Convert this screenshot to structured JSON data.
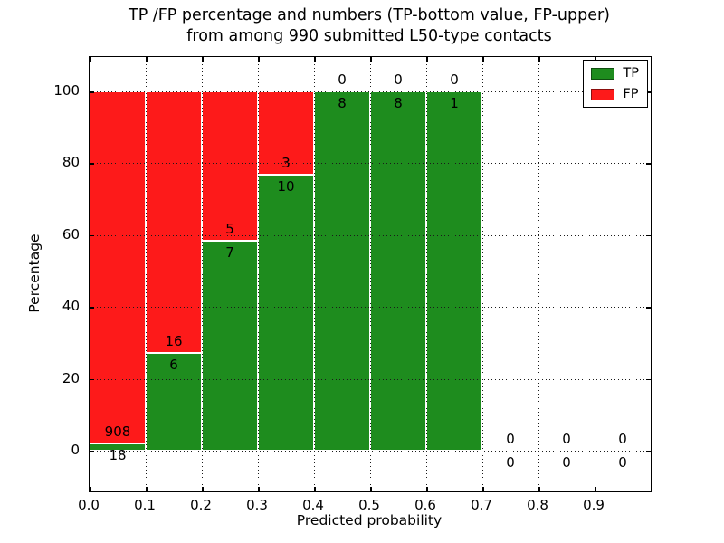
{
  "title": {
    "line1": "TP /FP percentage and numbers (TP-bottom value, FP-upper)",
    "line2": "from among 990 submitted L50-type contacts"
  },
  "axes": {
    "xlabel": "Predicted probability",
    "ylabel": "Percentage"
  },
  "legend": {
    "items": [
      {
        "label": "TP",
        "color": "#1e8c1e"
      },
      {
        "label": "FP",
        "color": "#fd1a1a"
      }
    ]
  },
  "colors": {
    "tp": "#1e8c1e",
    "fp": "#fd1a1a",
    "grid": "#1a1a1a",
    "spine": "#000000",
    "background": "#ffffff",
    "text": "#000000"
  },
  "chart_data": {
    "type": "bar",
    "stacked": true,
    "title": "TP /FP percentage and numbers (TP-bottom value, FP-upper) from among 990 submitted L50-type contacts",
    "xlabel": "Predicted probability",
    "ylabel": "Percentage",
    "xlim": [
      0.0,
      1.0
    ],
    "ylim": [
      -11,
      110
    ],
    "xticks": [
      "0.0",
      "0.1",
      "0.2",
      "0.3",
      "0.4",
      "0.5",
      "0.6",
      "0.7",
      "0.8",
      "0.9"
    ],
    "yticks": [
      0,
      20,
      40,
      60,
      80,
      100
    ],
    "grid": true,
    "grid_style": "dotted",
    "legend_position": "upper right",
    "total_contacts": 990,
    "bin_width": 0.1,
    "bin_starts": [
      0.0,
      0.1,
      0.2,
      0.3,
      0.4,
      0.5,
      0.6,
      0.7,
      0.8,
      0.9
    ],
    "series": [
      {
        "name": "TP",
        "color": "#1e8c1e",
        "counts": [
          18,
          6,
          7,
          10,
          8,
          8,
          1,
          0,
          0,
          0
        ]
      },
      {
        "name": "FP",
        "color": "#fd1a1a",
        "counts": [
          908,
          16,
          5,
          3,
          0,
          0,
          0,
          0,
          0,
          0
        ]
      }
    ],
    "tp_percentages": [
      1.94,
      27.27,
      58.33,
      76.92,
      100,
      100,
      100,
      0,
      0,
      0
    ],
    "fp_percentages": [
      98.06,
      72.73,
      41.67,
      23.08,
      0,
      0,
      0,
      0,
      0,
      0
    ]
  }
}
